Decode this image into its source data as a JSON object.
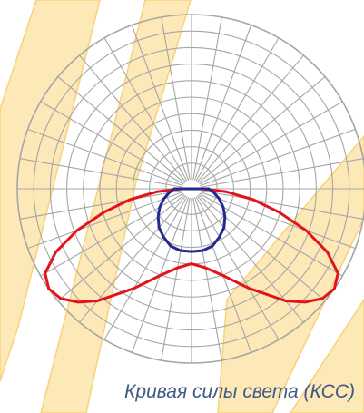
{
  "caption": "Кривая силы света (КСС)",
  "colors": {
    "grid": "#a6a6a6",
    "background_band": "#fde8b8",
    "background_stripe": "#f7d27a",
    "series_red": "#e4131b",
    "series_blue": "#25288f"
  },
  "chart_data": {
    "type": "polar",
    "title": "Кривая силы света (КСС)",
    "angle_step_deg": 10,
    "radial_rings": 10,
    "series": [
      {
        "color": "#e4131b",
        "points": [
          {
            "angle": 0,
            "r": 0.43
          },
          {
            "angle": 10,
            "r": 0.46
          },
          {
            "angle": 20,
            "r": 0.53
          },
          {
            "angle": 30,
            "r": 0.66
          },
          {
            "angle": 40,
            "r": 0.84
          },
          {
            "angle": 45,
            "r": 0.92
          },
          {
            "angle": 50,
            "r": 0.98
          },
          {
            "angle": 55,
            "r": 1.0
          },
          {
            "angle": 60,
            "r": 0.97
          },
          {
            "angle": 65,
            "r": 0.86
          },
          {
            "angle": 70,
            "r": 0.7
          },
          {
            "angle": 75,
            "r": 0.52
          },
          {
            "angle": 80,
            "r": 0.36
          },
          {
            "angle": 85,
            "r": 0.2
          },
          {
            "angle": 90,
            "r": 0.06
          }
        ]
      },
      {
        "color": "#25288f",
        "points": [
          {
            "angle": 0,
            "r": 0.36
          },
          {
            "angle": 10,
            "r": 0.36
          },
          {
            "angle": 20,
            "r": 0.35
          },
          {
            "angle": 30,
            "r": 0.32
          },
          {
            "angle": 40,
            "r": 0.29
          },
          {
            "angle": 50,
            "r": 0.25
          },
          {
            "angle": 60,
            "r": 0.21
          },
          {
            "angle": 70,
            "r": 0.17
          },
          {
            "angle": 80,
            "r": 0.13
          },
          {
            "angle": 90,
            "r": 0.1
          }
        ]
      }
    ]
  }
}
